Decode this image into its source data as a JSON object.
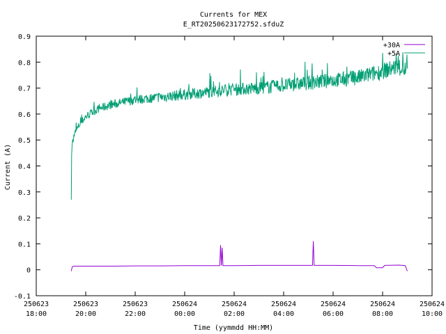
{
  "chart_data": {
    "type": "line",
    "title": "Currents for MEX",
    "subtitle": "E_RT20250623172752.sfduZ",
    "xlabel": "Time (yymmdd HH:MM)",
    "ylabel": "Current (A)",
    "ylim": [
      -0.1,
      0.9
    ],
    "xlim": [
      "2025-06-23 18:00",
      "2025-06-24 10:00"
    ],
    "y_ticks": [
      "-0.1",
      "0",
      "0.1",
      "0.2",
      "0.3",
      "0.4",
      "0.5",
      "0.6",
      "0.7",
      "0.8",
      "0.9"
    ],
    "x_ticks": [
      {
        "date": "250623",
        "time": "18:00"
      },
      {
        "date": "250623",
        "time": "20:00"
      },
      {
        "date": "250623",
        "time": "22:00"
      },
      {
        "date": "250624",
        "time": "00:00"
      },
      {
        "date": "250624",
        "time": "02:00"
      },
      {
        "date": "250624",
        "time": "04:00"
      },
      {
        "date": "250624",
        "time": "06:00"
      },
      {
        "date": "250624",
        "time": "08:00"
      },
      {
        "date": "250624",
        "time": "10:00"
      }
    ],
    "grid": false,
    "legend_position": "top-right",
    "series": [
      {
        "name": "+30A",
        "color": "#9400d3",
        "points": [
          [
            "2025-06-23 19:25",
            -0.005
          ],
          [
            "2025-06-23 19:27",
            0.01
          ],
          [
            "2025-06-23 19:30",
            0.014
          ],
          [
            "2025-06-23 20:00",
            0.014
          ],
          [
            "2025-06-23 21:00",
            0.014
          ],
          [
            "2025-06-23 22:00",
            0.015
          ],
          [
            "2025-06-23 23:00",
            0.015
          ],
          [
            "2025-06-24 00:00",
            0.016
          ],
          [
            "2025-06-24 01:00",
            0.016
          ],
          [
            "2025-06-24 01:25",
            0.016
          ],
          [
            "2025-06-24 01:27",
            0.095
          ],
          [
            "2025-06-24 01:29",
            0.016
          ],
          [
            "2025-06-24 01:31",
            0.085
          ],
          [
            "2025-06-24 01:33",
            0.016
          ],
          [
            "2025-06-24 02:00",
            0.016
          ],
          [
            "2025-06-24 03:00",
            0.017
          ],
          [
            "2025-06-24 04:00",
            0.017
          ],
          [
            "2025-06-24 05:00",
            0.017
          ],
          [
            "2025-06-24 05:10",
            0.017
          ],
          [
            "2025-06-24 05:12",
            0.11
          ],
          [
            "2025-06-24 05:14",
            0.017
          ],
          [
            "2025-06-24 06:00",
            0.017
          ],
          [
            "2025-06-24 07:00",
            0.016
          ],
          [
            "2025-06-24 07:40",
            0.016
          ],
          [
            "2025-06-24 07:45",
            0.008
          ],
          [
            "2025-06-24 08:00",
            0.008
          ],
          [
            "2025-06-24 08:05",
            0.017
          ],
          [
            "2025-06-24 08:40",
            0.018
          ],
          [
            "2025-06-24 08:55",
            0.016
          ],
          [
            "2025-06-24 09:00",
            -0.005
          ]
        ]
      },
      {
        "name": "+5A",
        "color": "#009e73",
        "points": [
          [
            "2025-06-23 19:25",
            0.27
          ],
          [
            "2025-06-23 19:26",
            0.46
          ],
          [
            "2025-06-23 19:28",
            0.5
          ],
          [
            "2025-06-23 19:35",
            0.53
          ],
          [
            "2025-06-23 19:45",
            0.56
          ],
          [
            "2025-06-23 20:00",
            0.59
          ],
          [
            "2025-06-23 20:30",
            0.62
          ],
          [
            "2025-06-23 21:00",
            0.635
          ],
          [
            "2025-06-23 22:00",
            0.655
          ],
          [
            "2025-06-23 23:00",
            0.665
          ],
          [
            "2025-06-24 00:00",
            0.675
          ],
          [
            "2025-06-24 01:00",
            0.685
          ],
          [
            "2025-06-24 02:00",
            0.695
          ],
          [
            "2025-06-24 03:00",
            0.7
          ],
          [
            "2025-06-24 04:00",
            0.71
          ],
          [
            "2025-06-24 05:00",
            0.72
          ],
          [
            "2025-06-24 06:00",
            0.73
          ],
          [
            "2025-06-24 07:00",
            0.74
          ],
          [
            "2025-06-24 08:00",
            0.765
          ],
          [
            "2025-06-24 08:30",
            0.78
          ],
          [
            "2025-06-24 09:00",
            0.77
          ]
        ],
        "noise_amplitude": 0.015
      }
    ]
  }
}
